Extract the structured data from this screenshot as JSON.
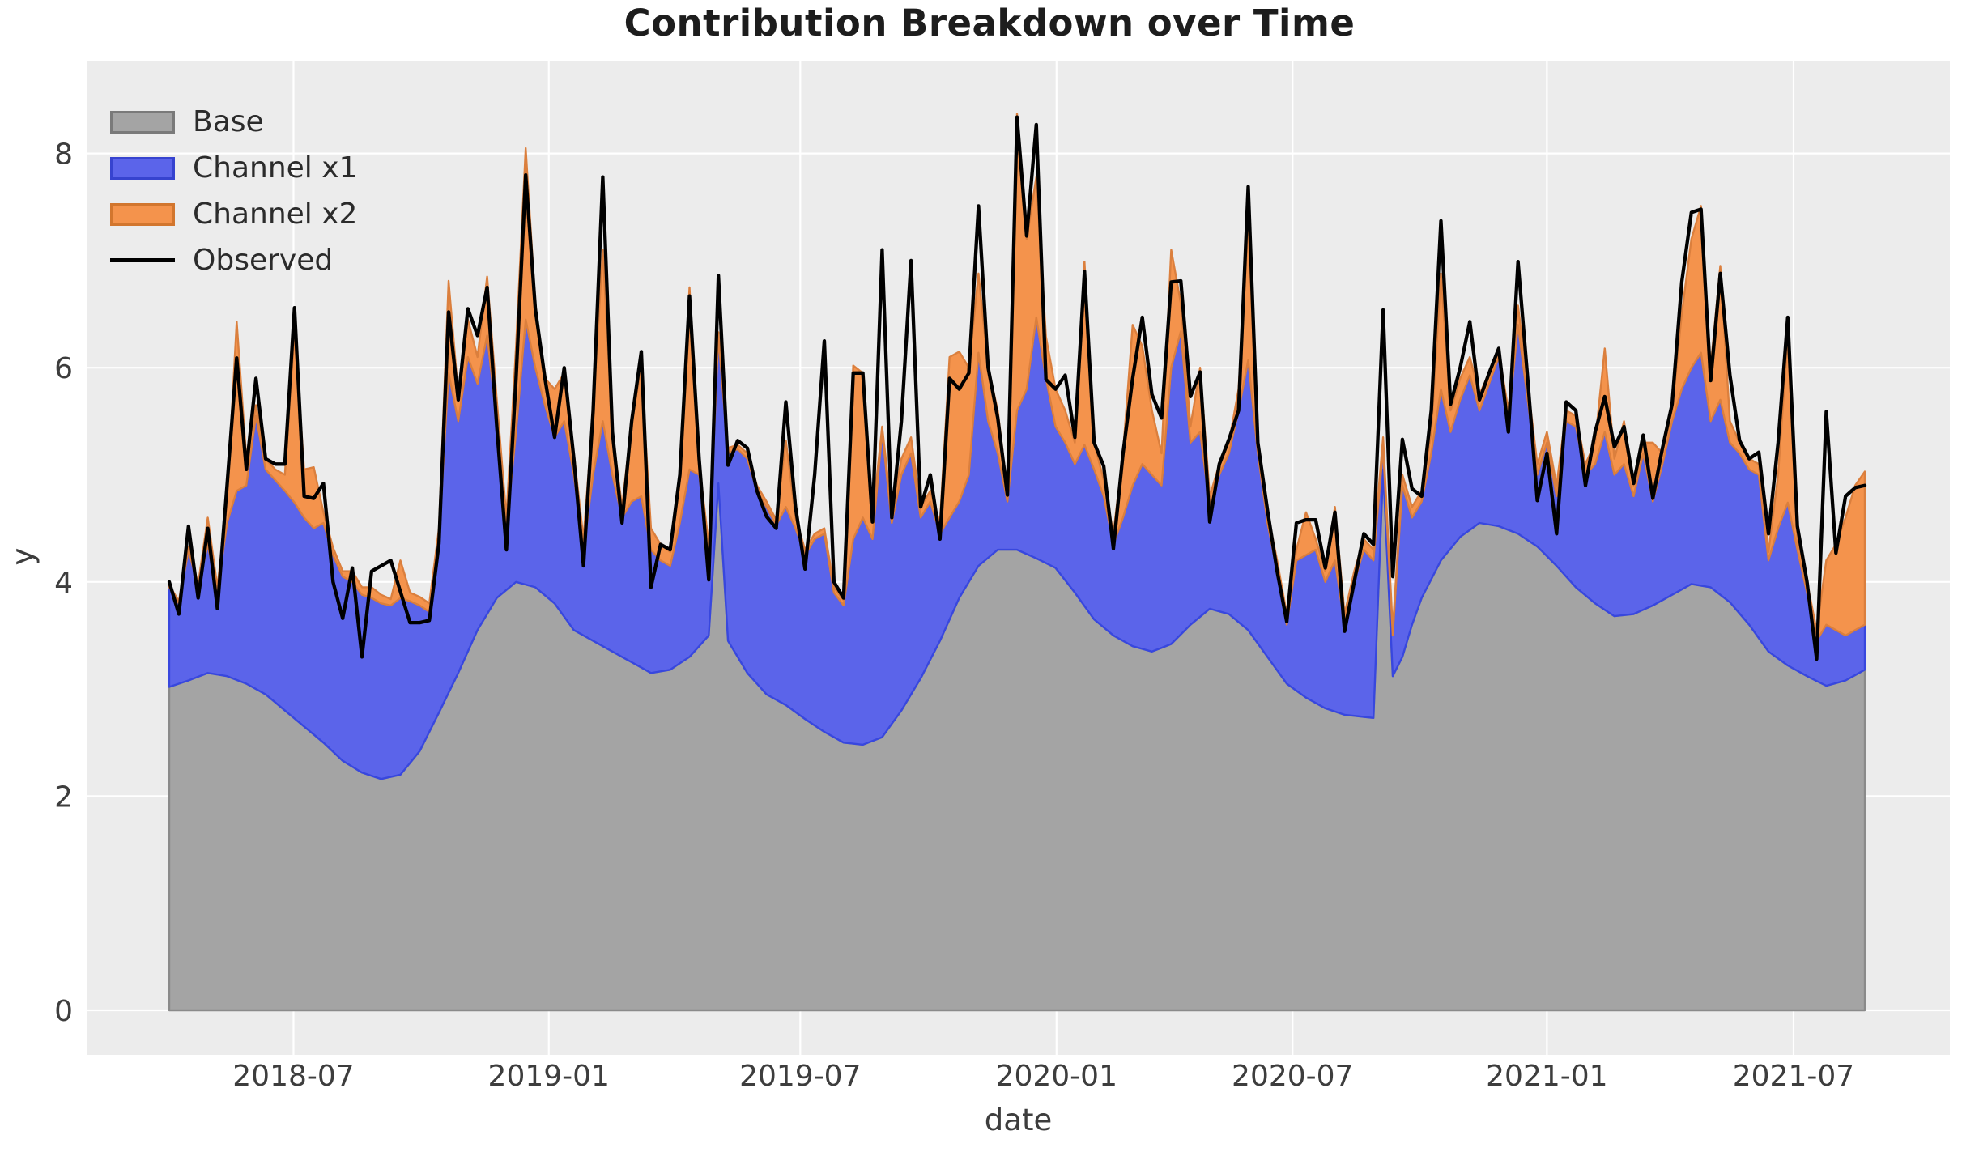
{
  "chart_data": {
    "type": "area",
    "stacked": true,
    "title": "Contribution Breakdown over Time",
    "xlabel": "date",
    "ylabel": "y",
    "x_start_date": "2018-04-02",
    "x_step_days": 7,
    "n_points": 177,
    "x_end_date": "2021-08-16",
    "ylim": [
      -0.42,
      8.87
    ],
    "y_ticks": [
      0,
      2,
      4,
      6,
      8
    ],
    "x_ticks": [
      {
        "label": "2018-07",
        "week": 12.9
      },
      {
        "label": "2019-01",
        "week": 39.4
      },
      {
        "label": "2019-07",
        "week": 65.5
      },
      {
        "label": "2020-01",
        "week": 92.1
      },
      {
        "label": "2020-07",
        "week": 116.6
      },
      {
        "label": "2021-01",
        "week": 143.0
      },
      {
        "label": "2021-07",
        "week": 168.6
      }
    ],
    "grid": true,
    "legend_position": "upper left",
    "colors": {
      "background": "#ececec",
      "gridline": "#ffffff",
      "base_fill": "#a4a4a4",
      "base_edge": "#8a8a8a",
      "channel_x1_fill": "#5b64ea",
      "channel_x1_edge": "#3847de",
      "channel_x2_fill": "#f4934c",
      "channel_x2_edge": "#db7f3d",
      "observed": "#000000",
      "tick_text": "#3d3d3d",
      "title_text": "#1d1d1d"
    },
    "series": [
      {
        "name": "Base",
        "kind": "smooth-area",
        "fill": "#a4a4a4",
        "edge": "#8a8a8a",
        "anchors_week_value": [
          [
            0,
            3.02
          ],
          [
            2,
            3.08
          ],
          [
            4,
            3.15
          ],
          [
            6,
            3.12
          ],
          [
            8,
            3.05
          ],
          [
            10,
            2.95
          ],
          [
            12,
            2.8
          ],
          [
            14,
            2.65
          ],
          [
            16,
            2.5
          ],
          [
            18,
            2.33
          ],
          [
            20,
            2.22
          ],
          [
            22,
            2.16
          ],
          [
            24,
            2.2
          ],
          [
            26,
            2.42
          ],
          [
            28,
            2.78
          ],
          [
            30,
            3.15
          ],
          [
            32,
            3.55
          ],
          [
            34,
            3.85
          ],
          [
            36,
            4.0
          ],
          [
            38,
            3.95
          ],
          [
            40,
            3.8
          ],
          [
            42,
            3.55
          ],
          [
            44,
            3.45
          ],
          [
            46,
            3.35
          ],
          [
            48,
            3.25
          ],
          [
            50,
            3.15
          ],
          [
            52,
            3.18
          ],
          [
            54,
            3.3
          ],
          [
            56,
            3.5
          ],
          [
            57,
            4.92
          ],
          [
            58,
            3.45
          ],
          [
            60,
            3.15
          ],
          [
            62,
            2.95
          ],
          [
            64,
            2.85
          ],
          [
            66,
            2.72
          ],
          [
            68,
            2.6
          ],
          [
            70,
            2.5
          ],
          [
            72,
            2.48
          ],
          [
            74,
            2.55
          ],
          [
            76,
            2.8
          ],
          [
            78,
            3.1
          ],
          [
            80,
            3.45
          ],
          [
            82,
            3.85
          ],
          [
            84,
            4.15
          ],
          [
            86,
            4.3
          ],
          [
            88,
            4.3
          ],
          [
            90,
            4.22
          ],
          [
            92,
            4.13
          ],
          [
            94,
            3.9
          ],
          [
            96,
            3.65
          ],
          [
            98,
            3.5
          ],
          [
            100,
            3.4
          ],
          [
            102,
            3.35
          ],
          [
            104,
            3.42
          ],
          [
            106,
            3.6
          ],
          [
            108,
            3.75
          ],
          [
            110,
            3.7
          ],
          [
            112,
            3.55
          ],
          [
            114,
            3.3
          ],
          [
            116,
            3.05
          ],
          [
            118,
            2.92
          ],
          [
            120,
            2.82
          ],
          [
            122,
            2.76
          ],
          [
            124,
            2.74
          ],
          [
            125,
            2.73
          ],
          [
            126,
            5.05
          ],
          [
            127,
            3.12
          ],
          [
            128,
            3.3
          ],
          [
            129,
            3.6
          ],
          [
            130,
            3.85
          ],
          [
            132,
            4.2
          ],
          [
            134,
            4.42
          ],
          [
            136,
            4.55
          ],
          [
            138,
            4.52
          ],
          [
            140,
            4.45
          ],
          [
            142,
            4.33
          ],
          [
            144,
            4.15
          ],
          [
            146,
            3.95
          ],
          [
            148,
            3.8
          ],
          [
            150,
            3.68
          ],
          [
            152,
            3.7
          ],
          [
            154,
            3.78
          ],
          [
            156,
            3.88
          ],
          [
            158,
            3.98
          ],
          [
            160,
            3.95
          ],
          [
            162,
            3.81
          ],
          [
            164,
            3.6
          ],
          [
            166,
            3.35
          ],
          [
            168,
            3.22
          ],
          [
            170,
            3.12
          ],
          [
            172,
            3.03
          ],
          [
            174,
            3.08
          ],
          [
            176,
            3.18
          ]
        ]
      },
      {
        "name": "Channel x1",
        "kind": "area",
        "fill": "#5b64ea",
        "edge": "#3847de",
        "cumulative_top_values": [
          3.95,
          3.8,
          4.3,
          3.95,
          4.35,
          3.9,
          4.55,
          4.85,
          4.9,
          5.55,
          5.05,
          4.95,
          4.85,
          4.74,
          4.6,
          4.5,
          4.55,
          4.25,
          4.05,
          4.0,
          3.88,
          3.85,
          3.8,
          3.78,
          3.85,
          3.82,
          3.78,
          3.72,
          4.4,
          5.95,
          5.5,
          6.1,
          5.85,
          6.3,
          5.5,
          4.5,
          5.4,
          6.45,
          6.0,
          5.65,
          5.35,
          5.5,
          5.0,
          4.3,
          5.0,
          5.5,
          5.0,
          4.6,
          4.75,
          4.8,
          4.3,
          4.2,
          4.15,
          4.55,
          5.05,
          5.0,
          4.27,
          6.29,
          5.2,
          5.24,
          5.15,
          4.85,
          4.7,
          4.53,
          4.7,
          4.5,
          4.25,
          4.4,
          4.45,
          3.9,
          3.78,
          4.4,
          4.6,
          4.4,
          5.4,
          4.55,
          5.0,
          5.2,
          4.6,
          4.75,
          4.45,
          4.6,
          4.75,
          5.0,
          6.14,
          5.5,
          5.2,
          4.75,
          5.6,
          5.8,
          6.47,
          5.9,
          5.45,
          5.3,
          5.1,
          5.28,
          5.05,
          4.8,
          4.35,
          4.6,
          4.9,
          5.1,
          5.0,
          4.9,
          6.0,
          6.34,
          5.3,
          5.4,
          4.7,
          5.0,
          5.2,
          5.6,
          6.07,
          5.2,
          4.55,
          4.1,
          3.6,
          4.2,
          4.25,
          4.3,
          4.0,
          4.2,
          3.6,
          4.0,
          4.3,
          4.2,
          5.25,
          3.5,
          4.9,
          4.6,
          4.75,
          5.2,
          5.8,
          5.4,
          5.7,
          5.93,
          5.6,
          5.85,
          6.1,
          5.5,
          6.4,
          5.7,
          5.0,
          5.3,
          4.8,
          5.5,
          5.45,
          5.0,
          5.1,
          5.4,
          5.0,
          5.1,
          4.8,
          5.2,
          4.75,
          5.1,
          5.5,
          5.8,
          6.0,
          6.14,
          5.5,
          5.7,
          5.3,
          5.2,
          5.05,
          5.0,
          4.2,
          4.5,
          4.74,
          4.3,
          3.9,
          3.45,
          3.6,
          3.55,
          3.5,
          3.55,
          3.6
        ]
      },
      {
        "name": "Channel x2",
        "kind": "area",
        "fill": "#f4934c",
        "edge": "#db7f3d",
        "cumulative_top_values": [
          3.97,
          3.82,
          4.33,
          3.98,
          4.6,
          3.95,
          4.75,
          6.43,
          5.15,
          5.65,
          5.15,
          5.05,
          5.0,
          6.34,
          5.05,
          5.07,
          4.65,
          4.32,
          4.1,
          4.1,
          3.95,
          3.95,
          3.88,
          3.84,
          4.2,
          3.9,
          3.86,
          3.8,
          4.5,
          6.81,
          5.75,
          6.45,
          6.1,
          6.85,
          5.7,
          4.6,
          6.2,
          8.05,
          6.6,
          5.9,
          5.8,
          5.95,
          5.2,
          4.4,
          5.6,
          7.1,
          5.4,
          4.7,
          5.5,
          6.0,
          4.5,
          4.35,
          4.28,
          5.0,
          6.75,
          5.1,
          4.35,
          6.33,
          5.25,
          5.28,
          5.2,
          4.9,
          4.75,
          4.58,
          5.32,
          4.6,
          4.3,
          4.45,
          4.5,
          3.95,
          3.83,
          6.02,
          5.95,
          4.6,
          5.45,
          4.65,
          5.15,
          5.35,
          4.7,
          4.85,
          4.55,
          6.1,
          6.15,
          6.0,
          6.88,
          6.0,
          5.6,
          4.85,
          8.37,
          7.2,
          7.78,
          6.29,
          5.8,
          5.6,
          5.3,
          6.99,
          5.3,
          4.95,
          4.45,
          5.2,
          6.4,
          6.2,
          5.6,
          5.2,
          7.1,
          6.6,
          5.45,
          6.0,
          4.8,
          5.1,
          5.3,
          5.8,
          7.33,
          5.3,
          4.65,
          4.2,
          3.7,
          4.3,
          4.65,
          4.4,
          4.1,
          4.7,
          3.7,
          4.1,
          4.4,
          4.3,
          5.35,
          3.55,
          5.0,
          4.7,
          4.85,
          5.4,
          6.88,
          5.6,
          5.9,
          6.1,
          5.75,
          5.95,
          6.15,
          5.6,
          6.58,
          5.85,
          5.1,
          5.4,
          4.9,
          5.6,
          5.55,
          5.1,
          5.3,
          6.18,
          5.15,
          5.5,
          4.9,
          5.3,
          5.3,
          5.2,
          5.6,
          6.5,
          7.2,
          7.51,
          6.0,
          6.95,
          5.5,
          5.3,
          5.15,
          5.1,
          4.28,
          5.0,
          6.29,
          4.4,
          4.0,
          3.55,
          4.2,
          4.35,
          4.6,
          4.9,
          5.03
        ]
      },
      {
        "name": "Observed",
        "kind": "line",
        "color": "#000000",
        "values": [
          4.0,
          3.7,
          4.52,
          3.85,
          4.5,
          3.75,
          4.9,
          6.09,
          5.05,
          5.9,
          5.15,
          5.1,
          5.1,
          6.56,
          4.8,
          4.78,
          4.92,
          4.0,
          3.66,
          4.13,
          3.3,
          4.1,
          4.15,
          4.2,
          3.91,
          3.62,
          3.62,
          3.64,
          4.36,
          6.52,
          5.7,
          6.55,
          6.3,
          6.75,
          5.45,
          4.3,
          5.9,
          7.8,
          6.55,
          5.9,
          5.35,
          6.0,
          5.15,
          4.15,
          5.6,
          7.78,
          5.4,
          4.55,
          5.5,
          6.15,
          3.95,
          4.35,
          4.3,
          5.0,
          6.67,
          5.15,
          4.02,
          6.86,
          5.09,
          5.32,
          5.25,
          4.85,
          4.61,
          4.5,
          5.68,
          4.7,
          4.12,
          5.0,
          6.25,
          4.0,
          3.85,
          5.95,
          5.95,
          4.56,
          7.1,
          4.6,
          5.5,
          7.0,
          4.7,
          5.0,
          4.4,
          5.9,
          5.8,
          5.95,
          7.51,
          6.0,
          5.53,
          4.81,
          8.34,
          7.23,
          8.27,
          5.89,
          5.8,
          5.93,
          5.35,
          6.9,
          5.3,
          5.08,
          4.31,
          5.2,
          5.9,
          6.47,
          5.75,
          5.53,
          6.8,
          6.81,
          5.73,
          5.96,
          4.56,
          5.1,
          5.33,
          5.6,
          7.69,
          5.3,
          4.67,
          4.1,
          3.63,
          4.55,
          4.58,
          4.58,
          4.13,
          4.65,
          3.54,
          4.0,
          4.45,
          4.35,
          6.54,
          4.05,
          5.33,
          4.87,
          4.8,
          5.6,
          7.37,
          5.66,
          6.0,
          6.43,
          5.7,
          5.95,
          6.18,
          5.4,
          6.99,
          5.9,
          4.76,
          5.2,
          4.45,
          5.68,
          5.6,
          4.9,
          5.4,
          5.73,
          5.26,
          5.45,
          4.92,
          5.37,
          4.78,
          5.25,
          5.66,
          6.8,
          7.45,
          7.48,
          5.88,
          6.88,
          5.93,
          5.32,
          5.15,
          5.21,
          4.45,
          5.3,
          6.47,
          4.52,
          4.0,
          3.28,
          5.59,
          4.27,
          4.8,
          4.88,
          4.9
        ]
      }
    ]
  }
}
